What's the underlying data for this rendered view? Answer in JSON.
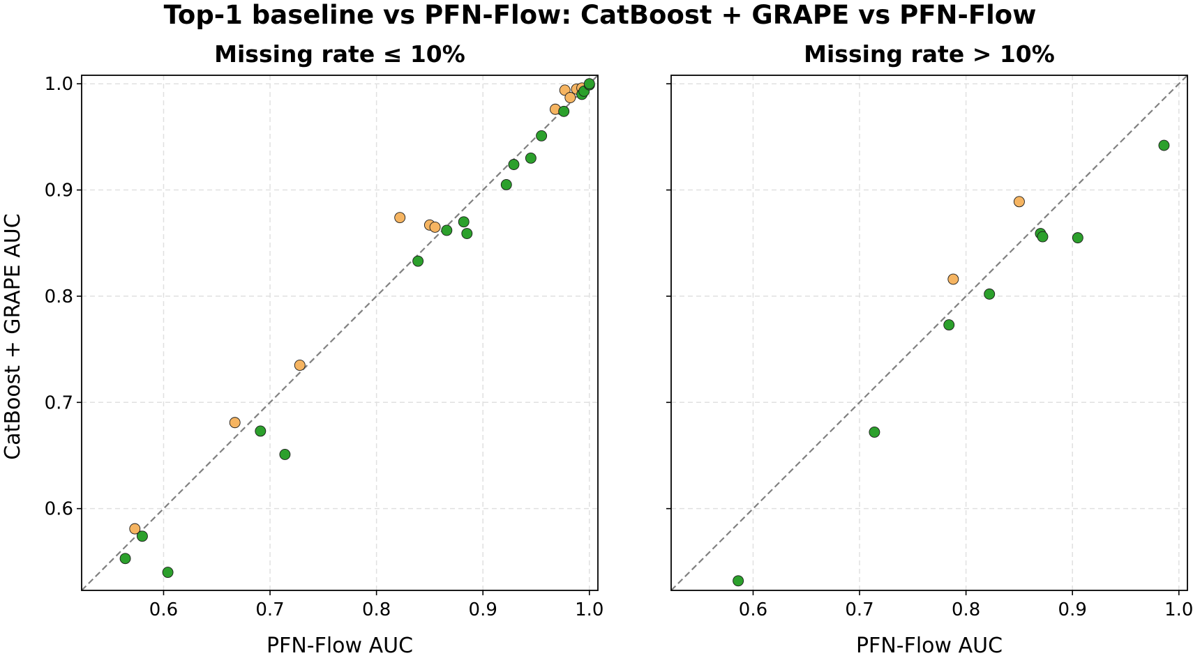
{
  "chart_data": {
    "type": "scatter",
    "title": "Top-1 baseline vs PFN-Flow: CatBoost + GRAPE vs PFN-Flow",
    "shared_ylabel": "CatBoost + GRAPE AUC",
    "colors": {
      "green": "#2ca02c",
      "orange": "#f5b461",
      "diagonal": "#808080",
      "grid": "#e0e0e0"
    },
    "panels": [
      {
        "title": "Missing rate ≤ 10%",
        "xlabel": "PFN-Flow AUC",
        "xlim": [
          0.523,
          1.008
        ],
        "ylim": [
          0.523,
          1.008
        ],
        "xticks": [
          "0.6",
          "0.7",
          "0.8",
          "0.9",
          "1.0"
        ],
        "yticks": [
          "0.6",
          "0.7",
          "0.8",
          "0.9",
          "1.0"
        ],
        "show_ytick_labels": true,
        "diagonal": true,
        "points": [
          {
            "x": 0.573,
            "y": 0.581,
            "color": "orange"
          },
          {
            "x": 0.667,
            "y": 0.681,
            "color": "orange"
          },
          {
            "x": 0.728,
            "y": 0.735,
            "color": "orange"
          },
          {
            "x": 0.822,
            "y": 0.874,
            "color": "orange"
          },
          {
            "x": 0.85,
            "y": 0.867,
            "color": "orange"
          },
          {
            "x": 0.855,
            "y": 0.865,
            "color": "orange"
          },
          {
            "x": 0.968,
            "y": 0.976,
            "color": "orange"
          },
          {
            "x": 0.977,
            "y": 0.994,
            "color": "orange"
          },
          {
            "x": 0.982,
            "y": 0.987,
            "color": "orange"
          },
          {
            "x": 0.988,
            "y": 0.995,
            "color": "orange"
          },
          {
            "x": 0.993,
            "y": 0.996,
            "color": "orange"
          },
          {
            "x": 0.564,
            "y": 0.553,
            "color": "green"
          },
          {
            "x": 0.58,
            "y": 0.574,
            "color": "green"
          },
          {
            "x": 0.604,
            "y": 0.54,
            "color": "green"
          },
          {
            "x": 0.691,
            "y": 0.673,
            "color": "green"
          },
          {
            "x": 0.714,
            "y": 0.651,
            "color": "green"
          },
          {
            "x": 0.839,
            "y": 0.833,
            "color": "green"
          },
          {
            "x": 0.866,
            "y": 0.862,
            "color": "green"
          },
          {
            "x": 0.882,
            "y": 0.87,
            "color": "green"
          },
          {
            "x": 0.885,
            "y": 0.859,
            "color": "green"
          },
          {
            "x": 0.922,
            "y": 0.905,
            "color": "green"
          },
          {
            "x": 0.929,
            "y": 0.924,
            "color": "green"
          },
          {
            "x": 0.945,
            "y": 0.93,
            "color": "green"
          },
          {
            "x": 0.955,
            "y": 0.951,
            "color": "green"
          },
          {
            "x": 0.976,
            "y": 0.974,
            "color": "green"
          },
          {
            "x": 0.993,
            "y": 0.99,
            "color": "green"
          },
          {
            "x": 0.995,
            "y": 0.993,
            "color": "green"
          },
          {
            "x": 1.0,
            "y": 0.999,
            "color": "green"
          },
          {
            "x": 1.0,
            "y": 1.0,
            "color": "green"
          }
        ]
      },
      {
        "title": "Missing rate > 10%",
        "xlabel": "PFN-Flow AUC",
        "xlim": [
          0.523,
          1.008
        ],
        "ylim": [
          0.523,
          1.008
        ],
        "xticks": [
          "0.6",
          "0.7",
          "0.8",
          "0.9",
          "1.0"
        ],
        "yticks": [
          "0.6",
          "0.7",
          "0.8",
          "0.9",
          "1.0"
        ],
        "show_ytick_labels": false,
        "diagonal": true,
        "points": [
          {
            "x": 0.788,
            "y": 0.816,
            "color": "orange"
          },
          {
            "x": 0.85,
            "y": 0.889,
            "color": "orange"
          },
          {
            "x": 0.586,
            "y": 0.532,
            "color": "green"
          },
          {
            "x": 0.714,
            "y": 0.672,
            "color": "green"
          },
          {
            "x": 0.784,
            "y": 0.773,
            "color": "green"
          },
          {
            "x": 0.822,
            "y": 0.802,
            "color": "green"
          },
          {
            "x": 0.87,
            "y": 0.859,
            "color": "green"
          },
          {
            "x": 0.872,
            "y": 0.856,
            "color": "green"
          },
          {
            "x": 0.905,
            "y": 0.855,
            "color": "green"
          },
          {
            "x": 0.986,
            "y": 0.942,
            "color": "green"
          }
        ]
      }
    ]
  }
}
